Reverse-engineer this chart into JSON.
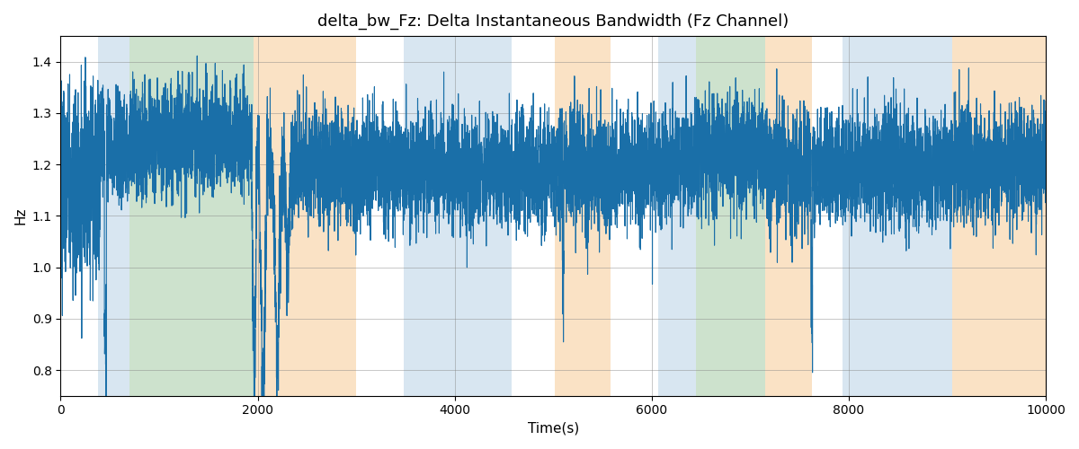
{
  "title": "delta_bw_Fz: Delta Instantaneous Bandwidth (Fz Channel)",
  "xlabel": "Time(s)",
  "ylabel": "Hz",
  "xlim": [
    0,
    10000
  ],
  "ylim": [
    0.75,
    1.45
  ],
  "line_color": "#1a6fa8",
  "line_width": 0.8,
  "background_color": "#ffffff",
  "colored_bands": [
    {
      "xmin": 380,
      "xmax": 700,
      "color": "#aac8e0",
      "alpha": 0.45
    },
    {
      "xmin": 700,
      "xmax": 1960,
      "color": "#90c090",
      "alpha": 0.45
    },
    {
      "xmin": 1960,
      "xmax": 3000,
      "color": "#f5c080",
      "alpha": 0.45
    },
    {
      "xmin": 3480,
      "xmax": 4580,
      "color": "#aac8e0",
      "alpha": 0.45
    },
    {
      "xmin": 5020,
      "xmax": 5580,
      "color": "#f5c080",
      "alpha": 0.45
    },
    {
      "xmin": 6070,
      "xmax": 6450,
      "color": "#aac8e0",
      "alpha": 0.45
    },
    {
      "xmin": 6450,
      "xmax": 7150,
      "color": "#90c090",
      "alpha": 0.45
    },
    {
      "xmin": 7150,
      "xmax": 7630,
      "color": "#f5c080",
      "alpha": 0.45
    },
    {
      "xmin": 7940,
      "xmax": 9050,
      "color": "#aac8e0",
      "alpha": 0.45
    },
    {
      "xmin": 9050,
      "xmax": 10000,
      "color": "#f5c080",
      "alpha": 0.45
    }
  ],
  "seed": 2023,
  "n_points": 10000,
  "base_mean": 1.2,
  "noise_std": 0.055
}
